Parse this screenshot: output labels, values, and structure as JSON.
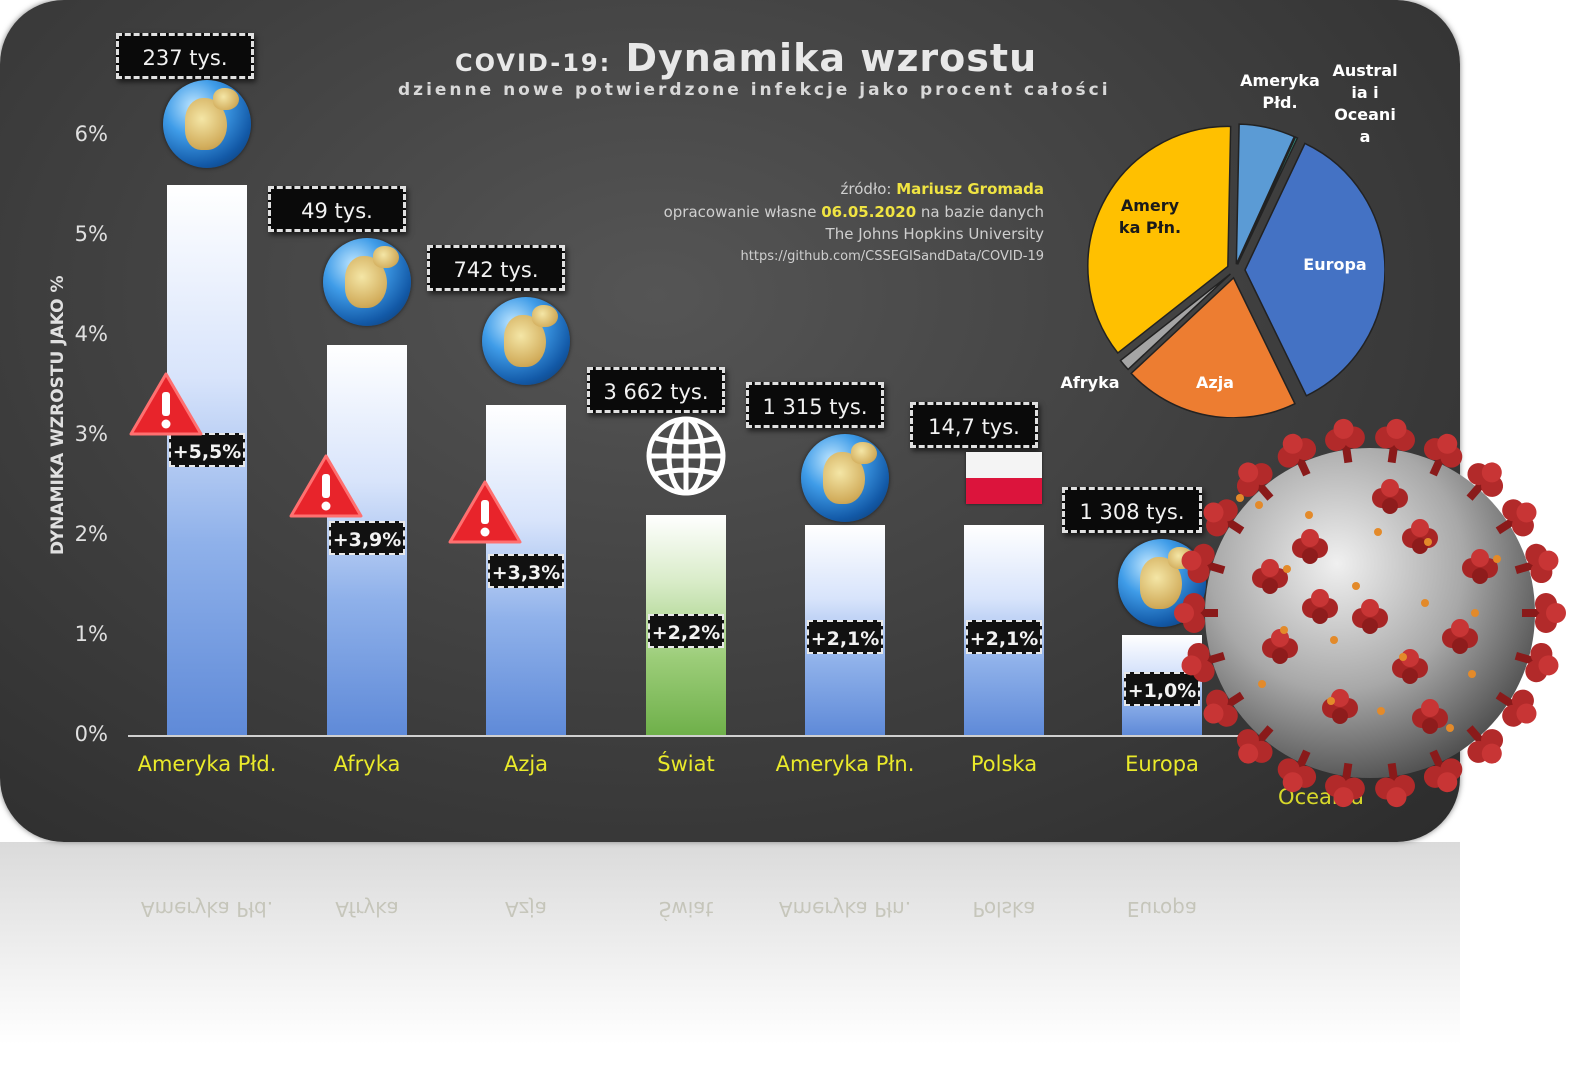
{
  "title_prefix": "COVID-19:",
  "title_main": "Dynamika wzrostu",
  "subtitle": "dzienne nowe potwierdzone infekcje jako procent całości",
  "source": {
    "line1_prefix": "źródło: ",
    "author": "Mariusz Gromada",
    "line2_prefix": "opracowanie własne ",
    "date": "06.05.2020",
    "line2_suffix": " na bazie danych",
    "line3": "The Johns Hopkins University",
    "line4": "https://github.com/CSSEGISandData/COVID-19"
  },
  "chart_data": [
    {
      "type": "bar",
      "title": "Dynamika wzrostu",
      "ylabel": "DYNAMIKA WZROSTU JAKO %",
      "ylim": [
        0,
        6
      ],
      "yticks": [
        "0%",
        "1%",
        "2%",
        "3%",
        "4%",
        "5%",
        "6%"
      ],
      "grid": false,
      "categories": [
        "Ameryka Płd.",
        "Afryka",
        "Azja",
        "Świat",
        "Ameryka Płn.",
        "Polska",
        "Europa",
        "Oceania"
      ],
      "values": [
        5.5,
        3.9,
        3.3,
        2.2,
        2.1,
        2.1,
        1.0,
        null
      ],
      "bar_labels": [
        "+5,5%",
        "+3,9%",
        "+3,3%",
        "+2,2%",
        "+2,1%",
        "+2,1%",
        "+1,0%",
        ""
      ],
      "case_totals": [
        "237 tys.",
        "49 tys.",
        "742 tys.",
        "3 662 tys.",
        "1 315 tys.",
        "14,7 tys.",
        "1 308 tys.",
        ""
      ],
      "highlight_color": "#6fb04a",
      "bar_color": "#5f8ad8",
      "warning_categories": [
        "Ameryka Płd.",
        "Afryka",
        "Azja"
      ]
    },
    {
      "type": "pie",
      "categories": [
        "Ameryka Płd.",
        "Australia i Oceania",
        "Europa",
        "Azja",
        "Afryka",
        "Ameryka Płn."
      ],
      "labels": [
        "Ameryka Płd.",
        "Austral ia i Oceani a",
        "Europa",
        "Azja",
        "Afryka",
        "Amery ka Płn."
      ],
      "values": [
        237,
        9,
        1308,
        742,
        49,
        1315
      ],
      "colors": [
        "#5b9bd5",
        "#2f9c8a",
        "#4472c4",
        "#ed7d31",
        "#a5a5a5",
        "#ffc000"
      ]
    }
  ]
}
